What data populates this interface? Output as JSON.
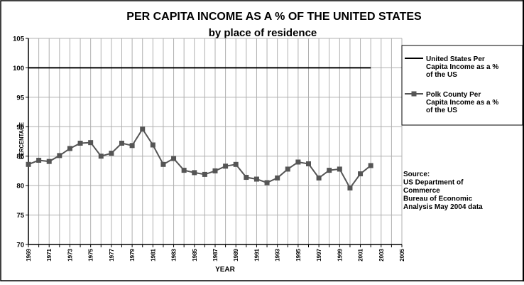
{
  "chart_data": {
    "type": "line",
    "title": "PER CAPITA INCOME AS A % OF THE UNITED STATES",
    "subtitle": "by place of residence",
    "xlabel": "YEAR",
    "ylabel": "PERCENTAGE",
    "xlim": [
      1969,
      2005
    ],
    "ylim": [
      70,
      105
    ],
    "yticks": [
      70,
      75,
      80,
      85,
      90,
      95,
      100,
      105
    ],
    "xticks": [
      1969,
      1971,
      1973,
      1975,
      1977,
      1979,
      1981,
      1983,
      1985,
      1987,
      1989,
      1991,
      1993,
      1995,
      1997,
      1999,
      2001,
      2003,
      2005
    ],
    "grid": true,
    "legend_position": "right",
    "series": [
      {
        "name": "United States Per Capita Income as a % of the US",
        "legend_lines": [
          "United States Per",
          "Capita Income as a %",
          "of the US"
        ],
        "color": "#000000",
        "marker": "none",
        "x": [
          1969,
          2002
        ],
        "values": [
          100,
          100
        ]
      },
      {
        "name": "Polk County Per Capita Income as a % of the US",
        "legend_lines": [
          "Polk County Per",
          "Capita Income as a %",
          "of the US"
        ],
        "color": "#555555",
        "marker": "square",
        "x": [
          1969,
          1970,
          1971,
          1972,
          1973,
          1974,
          1975,
          1976,
          1977,
          1978,
          1979,
          1980,
          1981,
          1982,
          1983,
          1984,
          1985,
          1986,
          1987,
          1988,
          1989,
          1990,
          1991,
          1992,
          1993,
          1994,
          1995,
          1996,
          1997,
          1998,
          1999,
          2000,
          2001,
          2002
        ],
        "values": [
          83.6,
          84.3,
          84.1,
          85.1,
          86.3,
          87.2,
          87.3,
          85.0,
          85.5,
          87.2,
          86.8,
          89.6,
          86.9,
          83.6,
          84.6,
          82.6,
          82.2,
          81.9,
          82.5,
          83.3,
          83.6,
          81.4,
          81.1,
          80.5,
          81.3,
          82.8,
          84.0,
          83.7,
          81.3,
          82.6,
          82.8,
          79.6,
          82.0,
          83.4
        ]
      }
    ],
    "annotation_lines": [
      "Source:",
      " US Department of",
      "Commerce",
      "Bureau of Economic",
      "Analysis May 2004 data"
    ]
  }
}
